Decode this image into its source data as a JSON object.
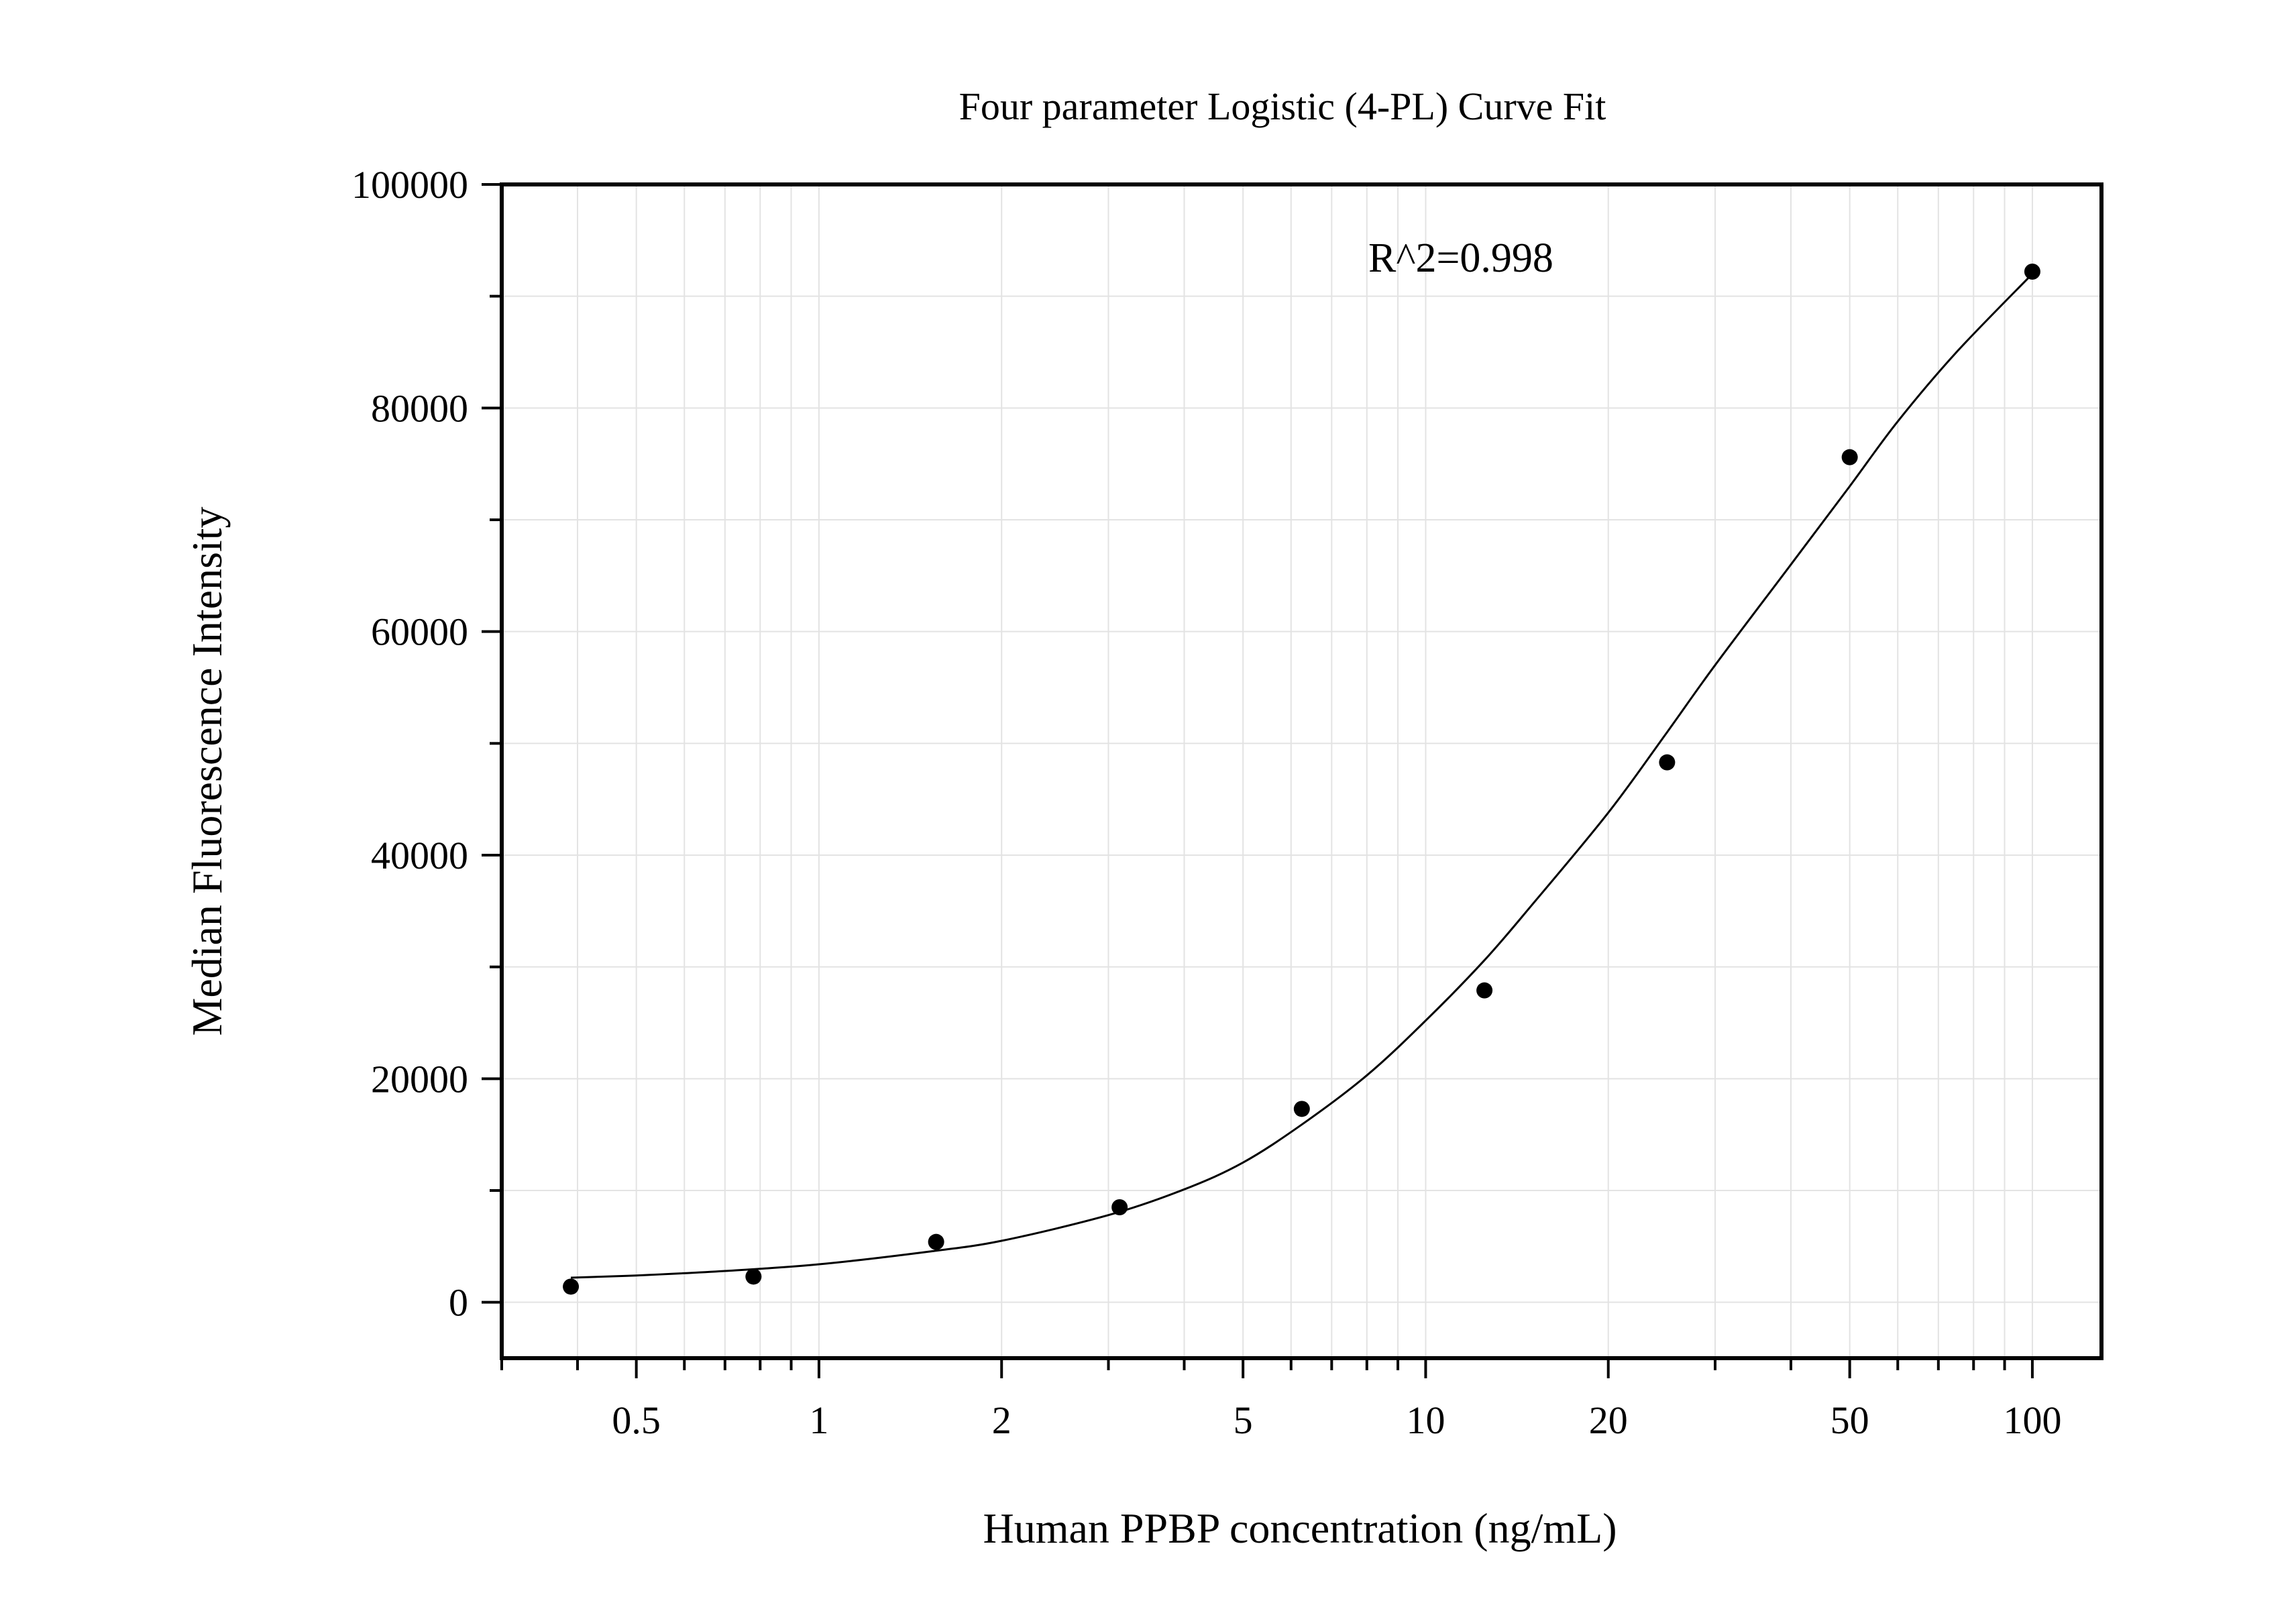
{
  "chart_data": {
    "type": "scatter",
    "title": "Four parameter Logistic (4-PL) Curve Fit",
    "xlabel": "Human PPBP concentration (ng/mL)",
    "ylabel": "Median Fluorescence Intensity",
    "x_scale": "log",
    "xlim": [
      0.3,
      130
    ],
    "ylim": [
      -5000,
      100000
    ],
    "x_ticks": [
      0.5,
      1,
      2,
      5,
      10,
      20,
      50,
      100
    ],
    "x_tick_labels": [
      "0.5",
      "1",
      "2",
      "5",
      "10",
      "20",
      "50",
      "100"
    ],
    "y_ticks": [
      0,
      20000,
      40000,
      60000,
      80000,
      100000
    ],
    "y_tick_labels": [
      "0",
      "20000",
      "40000",
      "60000",
      "80000",
      "100000"
    ],
    "grid": true,
    "annotation": "R^2=0.998",
    "series": [
      {
        "marker": "circle",
        "color": "#000000",
        "x": [
          0.39,
          0.78,
          1.56,
          3.13,
          6.25,
          12.5,
          25,
          50,
          100
        ],
        "y": [
          1400,
          2300,
          5400,
          8500,
          17300,
          27900,
          48300,
          75600,
          92200
        ]
      }
    ],
    "fit_curve": {
      "model": "4PL",
      "color": "#000000",
      "x": [
        0.39,
        0.5,
        0.7,
        1,
        1.5,
        2,
        3,
        4,
        5,
        6.25,
        8,
        10,
        12.5,
        15,
        20,
        25,
        30,
        40,
        50,
        60,
        75,
        100
      ],
      "y": [
        2200,
        2400,
        2800,
        3400,
        4500,
        5500,
        7800,
        10100,
        12500,
        15900,
        20300,
        25200,
        30600,
        35600,
        43800,
        51000,
        57000,
        66000,
        73000,
        78800,
        85000,
        92000
      ]
    }
  }
}
